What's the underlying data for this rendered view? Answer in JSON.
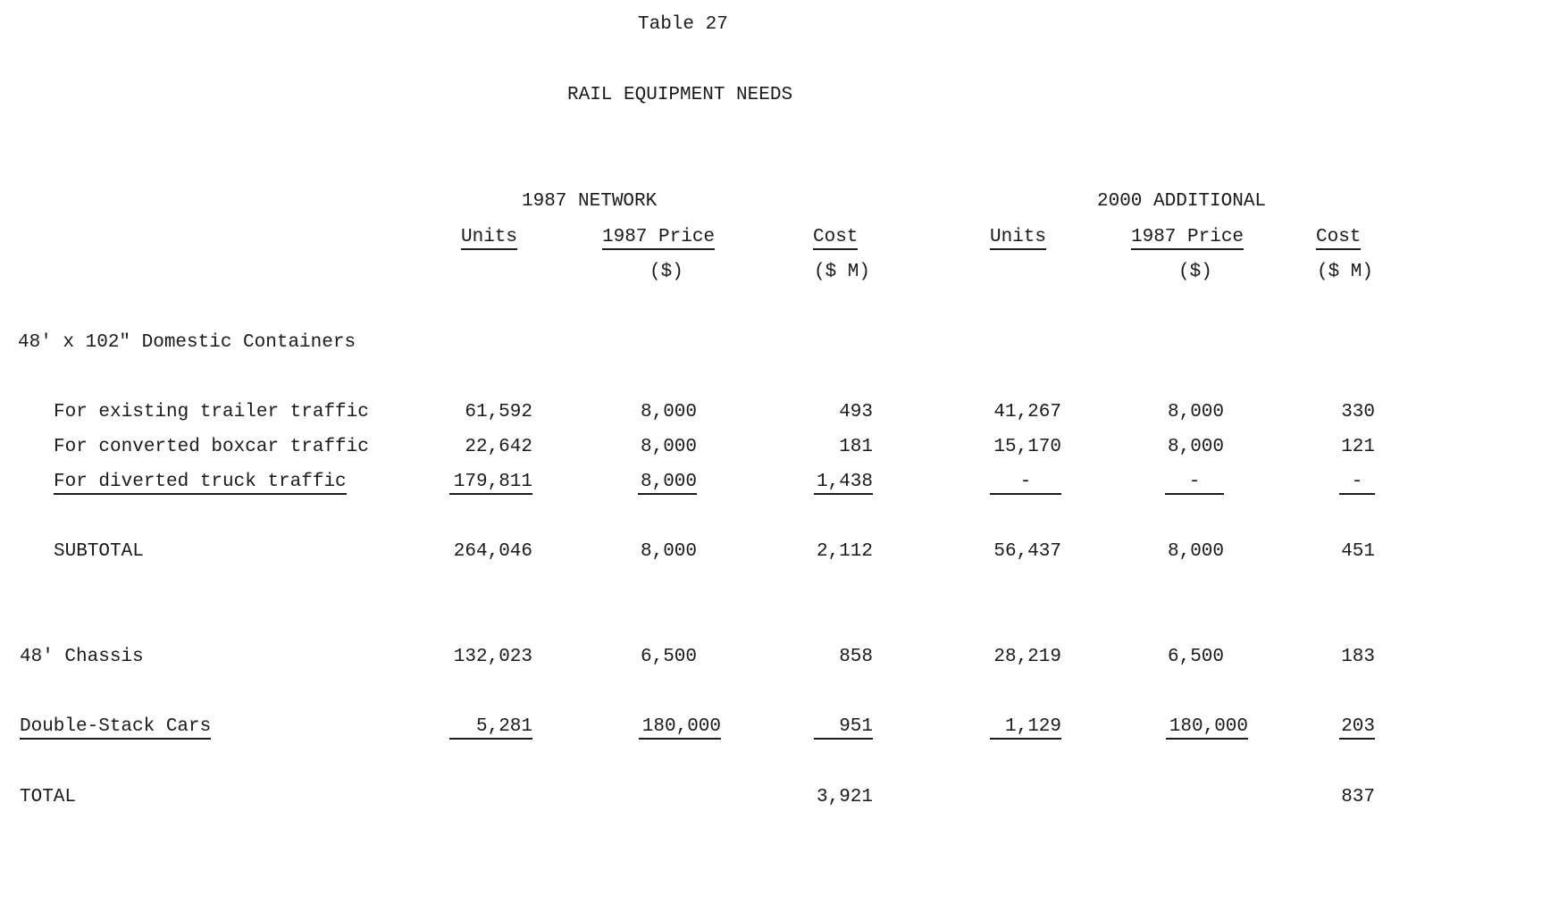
{
  "table_number": "Table 27",
  "title": "RAIL EQUIPMENT NEEDS",
  "groups": [
    "1987 NETWORK",
    "2000 ADDITIONAL"
  ],
  "columns": [
    {
      "label": "Units",
      "unit": ""
    },
    {
      "label": "1987 Price",
      "unit": "($)"
    },
    {
      "label": "Cost",
      "unit": "($ M)"
    },
    {
      "label": "Units",
      "unit": ""
    },
    {
      "label": "1987 Price",
      "unit": "($)"
    },
    {
      "label": "Cost",
      "unit": "($ M)"
    }
  ],
  "section_heading": "48' x 102\" Domestic Containers",
  "rows": [
    {
      "label": "For existing trailer traffic",
      "values": [
        "61,592",
        "8,000",
        "493",
        "41,267",
        "8,000",
        "330"
      ]
    },
    {
      "label": "For converted boxcar traffic",
      "values": [
        "22,642",
        "8,000",
        "181",
        "15,170",
        "8,000",
        "121"
      ]
    },
    {
      "label": "For diverted truck traffic",
      "values": [
        "179,811",
        "8,000",
        "1,438",
        "-",
        "-",
        "-"
      ]
    },
    {
      "label": "SUBTOTAL",
      "values": [
        "264,046",
        "8,000",
        "2,112",
        "56,437",
        "8,000",
        "451"
      ]
    },
    {
      "label": "48' Chassis",
      "values": [
        "132,023",
        "6,500",
        "858",
        "28,219",
        "6,500",
        "183"
      ]
    },
    {
      "label": "Double-Stack Cars",
      "values": [
        "5,281",
        "180,000",
        "951",
        "1,129",
        "180,000",
        "203"
      ]
    },
    {
      "label": "TOTAL",
      "values": [
        "",
        "",
        "3,921",
        "",
        "",
        "837"
      ]
    }
  ]
}
